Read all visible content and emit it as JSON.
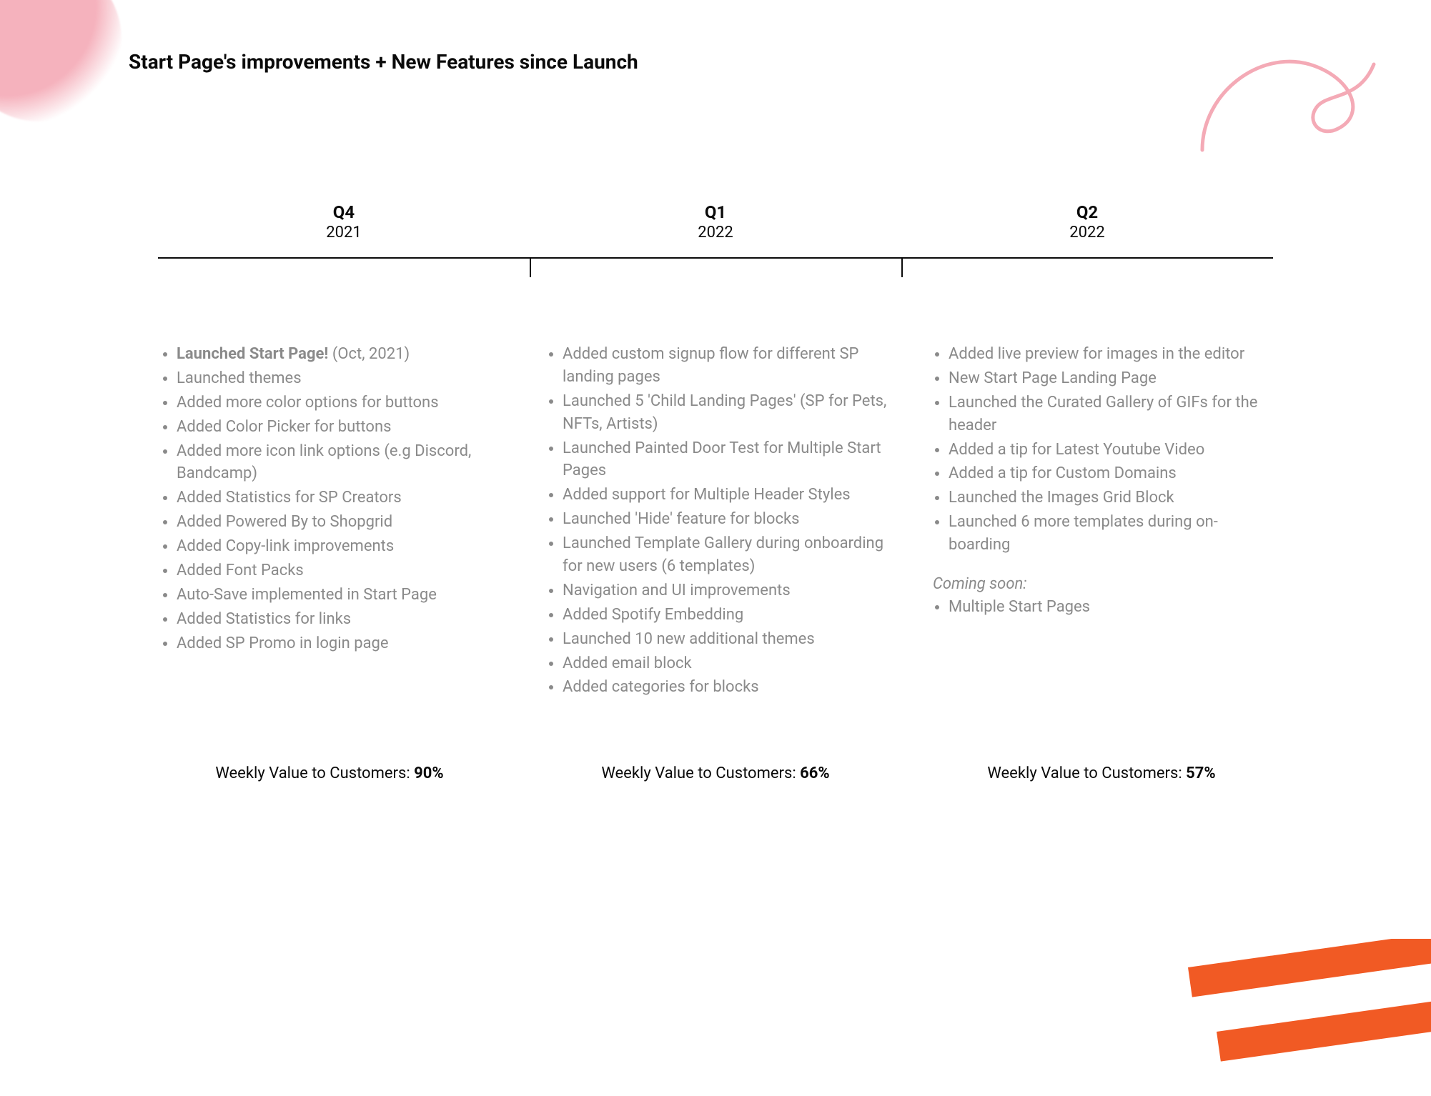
{
  "title": "Start Page's improvements + New Features since Launch",
  "decor": {
    "pink_blob_color": "#f4aab6",
    "swirl_stroke": "#f4aab6",
    "orange_stroke": "#f15a24"
  },
  "timeline": {
    "axis_color": "#0a0a0a",
    "tick_positions_pct": [
      33.33,
      66.67
    ],
    "periods": [
      {
        "quarter": "Q4",
        "year": "2021",
        "features": [
          {
            "bold_lead": "Launched Start Page!",
            "rest": " (Oct, 2021)"
          },
          {
            "text": "Launched  themes"
          },
          {
            "text": "Added more color options for buttons"
          },
          {
            "text": "Added Color Picker for buttons"
          },
          {
            "text": "Added more icon link options (e.g Discord, Bandcamp)"
          },
          {
            "text": "Added Statistics for SP Creators"
          },
          {
            "text": "Added Powered By to Shopgrid"
          },
          {
            "text": "Added Copy-link improvements"
          },
          {
            "text": "Added Font Packs"
          },
          {
            "text": "Auto-Save implemented in Start Page"
          },
          {
            "text": "Added Statistics for links"
          },
          {
            "text": "Added SP Promo in login page"
          }
        ],
        "metric_label": "Weekly Value to Customers: ",
        "metric_value": "90%"
      },
      {
        "quarter": "Q1",
        "year": "2022",
        "features": [
          {
            "text": "Added custom signup flow for different SP landing pages"
          },
          {
            "text": "Launched 5  'Child Landing Pages' (SP for Pets, NFTs, Artists)"
          },
          {
            "text": "Launched Painted Door Test for Multiple  Start Pages"
          },
          {
            "text": "Added support for Multiple Header Styles"
          },
          {
            "text": "Launched 'Hide' feature for blocks"
          },
          {
            "text": "Launched Template Gallery during onboarding for new users (6 templates)"
          },
          {
            "text": "Navigation and UI improvements"
          },
          {
            "text": "Added Spotify Embedding"
          },
          {
            "text": "Launched 10 new additional themes"
          },
          {
            "text": "Added email block"
          },
          {
            "text": "Added categories for blocks"
          }
        ],
        "metric_label": "Weekly Value to Customers: ",
        "metric_value": "66%"
      },
      {
        "quarter": "Q2",
        "year": "2022",
        "features": [
          {
            "text": "Added live preview for images in the editor"
          },
          {
            "text": "New Start Page Landing Page"
          },
          {
            "text": "Launched the Curated Gallery of GIFs for the header"
          },
          {
            "text": "Added a tip for Latest Youtube Video"
          },
          {
            "text": "Added a tip for Custom Domains"
          },
          {
            "text": "Launched the Images Grid Block"
          },
          {
            "text": "Launched 6 more templates during on-boarding"
          }
        ],
        "coming_soon_label": "Coming soon:",
        "coming_soon": [
          {
            "text": "Multiple Start Pages"
          }
        ],
        "metric_label": "Weekly Value to Customers: ",
        "metric_value": "57%"
      }
    ]
  }
}
